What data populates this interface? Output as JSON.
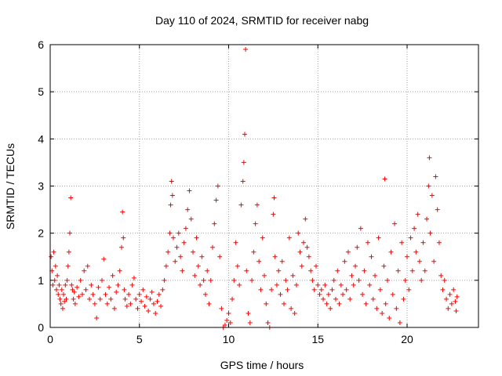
{
  "chart_data": {
    "type": "scatter",
    "title": "Day 110 of 2024, SRMTID for receiver nabg",
    "xlabel": "GPS time / hours",
    "ylabel": "SRMTID / TECUs",
    "xlim": [
      0,
      24
    ],
    "ylim": [
      0,
      6
    ],
    "xticks": [
      0,
      5,
      10,
      15,
      20
    ],
    "yticks": [
      0,
      1,
      2,
      3,
      4,
      5,
      6
    ],
    "xtick_labels": [
      "0",
      "5",
      "10",
      "15",
      "20"
    ],
    "ytick_labels": [
      "0",
      "1",
      "2",
      "3",
      "4",
      "5",
      "6"
    ],
    "grid": true,
    "marker": "+",
    "color": "#ff0000",
    "series": [
      {
        "name": "SRMTID",
        "points": [
          [
            0.05,
            1.5
          ],
          [
            0.1,
            1.2
          ],
          [
            0.15,
            0.9
          ],
          [
            0.2,
            1.6
          ],
          [
            0.25,
            1.0
          ],
          [
            0.3,
            1.3
          ],
          [
            0.35,
            0.8
          ],
          [
            0.4,
            1.1
          ],
          [
            0.45,
            0.7
          ],
          [
            0.5,
            0.9
          ],
          [
            0.55,
            0.6
          ],
          [
            0.6,
            0.5
          ],
          [
            0.65,
            0.8
          ],
          [
            0.7,
            0.4
          ],
          [
            0.75,
            0.7
          ],
          [
            0.8,
            0.55
          ],
          [
            0.85,
            0.9
          ],
          [
            0.9,
            0.6
          ],
          [
            0.95,
            1.0
          ],
          [
            1.0,
            1.3
          ],
          [
            1.05,
            1.6
          ],
          [
            1.1,
            2.0
          ],
          [
            1.15,
            2.75
          ],
          [
            1.2,
            0.9
          ],
          [
            1.25,
            0.8
          ],
          [
            1.3,
            0.6
          ],
          [
            1.35,
            0.75
          ],
          [
            1.4,
            0.5
          ],
          [
            1.5,
            0.85
          ],
          [
            1.6,
            0.65
          ],
          [
            1.7,
            1.0
          ],
          [
            1.8,
            0.7
          ],
          [
            1.9,
            1.2
          ],
          [
            2.0,
            0.8
          ],
          [
            2.1,
            1.3
          ],
          [
            2.2,
            0.6
          ],
          [
            2.3,
            0.9
          ],
          [
            2.4,
            0.7
          ],
          [
            2.5,
            0.5
          ],
          [
            2.6,
            0.2
          ],
          [
            2.7,
            0.85
          ],
          [
            2.8,
            0.6
          ],
          [
            2.9,
            1.0
          ],
          [
            3.0,
            1.45
          ],
          [
            3.1,
            0.7
          ],
          [
            3.2,
            0.5
          ],
          [
            3.3,
            0.85
          ],
          [
            3.4,
            0.6
          ],
          [
            3.5,
            1.1
          ],
          [
            3.6,
            0.4
          ],
          [
            3.7,
            0.75
          ],
          [
            3.8,
            0.9
          ],
          [
            3.9,
            1.2
          ],
          [
            4.0,
            1.7
          ],
          [
            4.05,
            2.45
          ],
          [
            4.1,
            1.9
          ],
          [
            4.15,
            0.8
          ],
          [
            4.2,
            0.6
          ],
          [
            4.3,
            0.45
          ],
          [
            4.4,
            0.7
          ],
          [
            4.5,
            0.5
          ],
          [
            4.6,
            0.9
          ],
          [
            4.7,
            1.05
          ],
          [
            4.8,
            0.6
          ],
          [
            4.9,
            0.4
          ],
          [
            5.0,
            0.7
          ],
          [
            5.1,
            0.55
          ],
          [
            5.2,
            0.8
          ],
          [
            5.3,
            0.45
          ],
          [
            5.4,
            0.65
          ],
          [
            5.5,
            0.35
          ],
          [
            5.6,
            0.6
          ],
          [
            5.7,
            0.75
          ],
          [
            5.8,
            0.5
          ],
          [
            5.9,
            0.3
          ],
          [
            6.0,
            0.55
          ],
          [
            6.1,
            0.7
          ],
          [
            6.2,
            0.45
          ],
          [
            6.3,
            0.8
          ],
          [
            6.4,
            1.0
          ],
          [
            6.5,
            1.3
          ],
          [
            6.6,
            1.6
          ],
          [
            6.7,
            2.0
          ],
          [
            6.75,
            2.6
          ],
          [
            6.8,
            3.1
          ],
          [
            6.85,
            2.8
          ],
          [
            6.9,
            1.9
          ],
          [
            7.0,
            1.4
          ],
          [
            7.1,
            1.7
          ],
          [
            7.2,
            2.0
          ],
          [
            7.3,
            1.5
          ],
          [
            7.4,
            1.2
          ],
          [
            7.5,
            1.8
          ],
          [
            7.6,
            2.1
          ],
          [
            7.7,
            2.5
          ],
          [
            7.8,
            2.9
          ],
          [
            7.9,
            2.3
          ],
          [
            8.0,
            1.6
          ],
          [
            8.1,
            1.1
          ],
          [
            8.2,
            1.9
          ],
          [
            8.3,
            1.3
          ],
          [
            8.4,
            0.9
          ],
          [
            8.5,
            1.5
          ],
          [
            8.6,
            1.0
          ],
          [
            8.7,
            0.7
          ],
          [
            8.8,
            1.2
          ],
          [
            8.9,
            0.5
          ],
          [
            9.0,
            1.0
          ],
          [
            9.1,
            1.7
          ],
          [
            9.2,
            2.2
          ],
          [
            9.3,
            2.7
          ],
          [
            9.4,
            3.0
          ],
          [
            9.5,
            1.5
          ],
          [
            9.6,
            0.4
          ],
          [
            9.7,
            0.0
          ],
          [
            9.8,
            0.05
          ],
          [
            9.9,
            0.15
          ],
          [
            10.0,
            0.3
          ],
          [
            10.1,
            0.1
          ],
          [
            10.2,
            0.6
          ],
          [
            10.3,
            1.0
          ],
          [
            10.4,
            1.8
          ],
          [
            10.5,
            1.3
          ],
          [
            10.6,
            0.9
          ],
          [
            10.7,
            2.6
          ],
          [
            10.8,
            3.1
          ],
          [
            10.85,
            3.5
          ],
          [
            10.9,
            4.1
          ],
          [
            10.95,
            5.9
          ],
          [
            11.0,
            1.2
          ],
          [
            11.1,
            0.3
          ],
          [
            11.2,
            0.1
          ],
          [
            11.3,
            1.0
          ],
          [
            11.4,
            1.6
          ],
          [
            11.5,
            2.2
          ],
          [
            11.6,
            2.6
          ],
          [
            11.7,
            1.4
          ],
          [
            11.8,
            0.8
          ],
          [
            11.9,
            1.9
          ],
          [
            12.0,
            1.1
          ],
          [
            12.1,
            0.5
          ],
          [
            12.2,
            0.1
          ],
          [
            12.3,
            0.0
          ],
          [
            12.4,
            0.8
          ],
          [
            12.5,
            2.4
          ],
          [
            12.55,
            2.75
          ],
          [
            12.6,
            1.5
          ],
          [
            12.7,
            0.9
          ],
          [
            12.8,
            1.2
          ],
          [
            12.9,
            0.7
          ],
          [
            13.0,
            1.4
          ],
          [
            13.1,
            0.5
          ],
          [
            13.2,
            1.0
          ],
          [
            13.3,
            0.8
          ],
          [
            13.4,
            1.9
          ],
          [
            13.5,
            0.4
          ],
          [
            13.6,
            1.1
          ],
          [
            13.7,
            0.3
          ],
          [
            13.8,
            0.9
          ],
          [
            13.9,
            2.0
          ],
          [
            14.0,
            1.6
          ],
          [
            14.1,
            1.3
          ],
          [
            14.2,
            1.8
          ],
          [
            14.3,
            2.3
          ],
          [
            14.4,
            1.7
          ],
          [
            14.5,
            1.5
          ],
          [
            14.6,
            1.2
          ],
          [
            14.7,
            1.0
          ],
          [
            14.8,
            0.8
          ],
          [
            14.9,
            1.3
          ],
          [
            15.0,
            0.9
          ],
          [
            15.1,
            0.7
          ],
          [
            15.2,
            0.8
          ],
          [
            15.3,
            0.6
          ],
          [
            15.4,
            0.9
          ],
          [
            15.5,
            0.5
          ],
          [
            15.6,
            0.7
          ],
          [
            15.7,
            0.4
          ],
          [
            15.8,
            0.8
          ],
          [
            15.9,
            1.0
          ],
          [
            16.0,
            0.6
          ],
          [
            16.1,
            1.2
          ],
          [
            16.2,
            0.5
          ],
          [
            16.3,
            0.9
          ],
          [
            16.4,
            0.7
          ],
          [
            16.5,
            1.4
          ],
          [
            16.6,
            0.8
          ],
          [
            16.7,
            1.6
          ],
          [
            16.8,
            0.6
          ],
          [
            16.9,
            1.1
          ],
          [
            17.0,
            0.9
          ],
          [
            17.1,
            1.3
          ],
          [
            17.2,
            1.7
          ],
          [
            17.3,
            1.0
          ],
          [
            17.4,
            2.1
          ],
          [
            17.5,
            0.7
          ],
          [
            17.6,
            1.2
          ],
          [
            17.7,
            0.5
          ],
          [
            17.8,
            1.8
          ],
          [
            17.9,
            0.9
          ],
          [
            18.0,
            1.5
          ],
          [
            18.1,
            0.6
          ],
          [
            18.2,
            1.1
          ],
          [
            18.3,
            0.4
          ],
          [
            18.4,
            1.9
          ],
          [
            18.5,
            0.8
          ],
          [
            18.6,
            0.3
          ],
          [
            18.7,
            1.3
          ],
          [
            18.75,
            3.15
          ],
          [
            18.8,
            0.5
          ],
          [
            18.9,
            1.0
          ],
          [
            19.0,
            0.2
          ],
          [
            19.1,
            1.6
          ],
          [
            19.2,
            0.7
          ],
          [
            19.3,
            2.2
          ],
          [
            19.4,
            0.4
          ],
          [
            19.5,
            1.2
          ],
          [
            19.6,
            0.1
          ],
          [
            19.7,
            1.8
          ],
          [
            19.8,
            0.6
          ],
          [
            19.9,
            1.0
          ],
          [
            20.0,
            1.5
          ],
          [
            20.1,
            0.8
          ],
          [
            20.2,
            1.9
          ],
          [
            20.3,
            1.2
          ],
          [
            20.4,
            2.1
          ],
          [
            20.5,
            1.6
          ],
          [
            20.6,
            2.4
          ],
          [
            20.7,
            1.4
          ],
          [
            20.8,
            1.0
          ],
          [
            20.9,
            1.8
          ],
          [
            21.0,
            1.2
          ],
          [
            21.1,
            2.3
          ],
          [
            21.2,
            3.0
          ],
          [
            21.25,
            3.6
          ],
          [
            21.3,
            2.0
          ],
          [
            21.4,
            2.8
          ],
          [
            21.5,
            1.4
          ],
          [
            21.6,
            3.2
          ],
          [
            21.7,
            2.5
          ],
          [
            21.8,
            1.8
          ],
          [
            21.9,
            1.1
          ],
          [
            22.0,
            0.8
          ],
          [
            22.1,
            1.0
          ],
          [
            22.2,
            0.6
          ],
          [
            22.3,
            0.4
          ],
          [
            22.4,
            0.7
          ],
          [
            22.5,
            0.5
          ],
          [
            22.6,
            0.8
          ],
          [
            22.7,
            0.55
          ],
          [
            22.75,
            0.35
          ],
          [
            22.8,
            0.65
          ]
        ]
      }
    ]
  }
}
